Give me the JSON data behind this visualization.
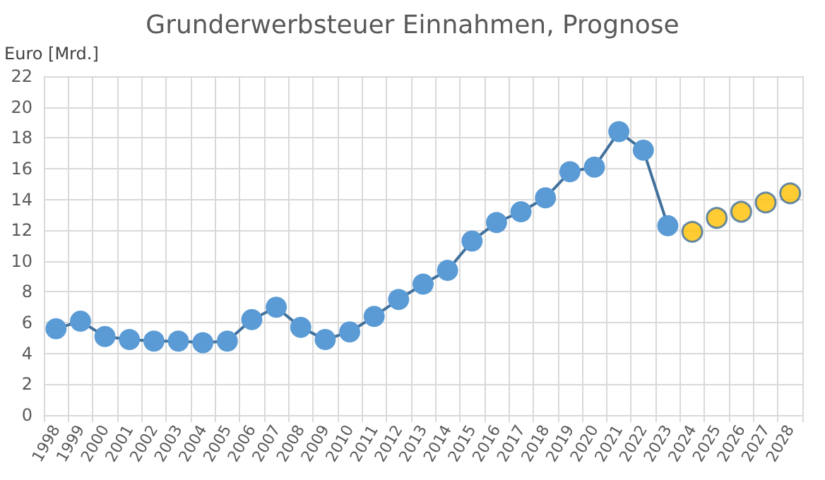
{
  "chart_data": {
    "type": "line",
    "title": "Grunderwerbsteuer Einnahmen, Prognose",
    "ylabel": "Euro [Mrd.]",
    "categories": [
      "1998",
      "1999",
      "2000",
      "2001",
      "2002",
      "2003",
      "2004",
      "2005",
      "2006",
      "2007",
      "2008",
      "2009",
      "2010",
      "2011",
      "2012",
      "2013",
      "2014",
      "2015",
      "2016",
      "2017",
      "2018",
      "2019",
      "2020",
      "2021",
      "2022",
      "2023",
      "2024",
      "2025",
      "2026",
      "2027",
      "2028"
    ],
    "series": [
      {
        "color": "#5b9bd5",
        "values": [
          5.6,
          6.1,
          5.1,
          4.9,
          4.8,
          4.8,
          4.7,
          4.8,
          6.2,
          7.0,
          5.7,
          4.9,
          5.4,
          6.4,
          7.5,
          8.5,
          9.4,
          11.3,
          12.5,
          13.2,
          14.1,
          15.8,
          16.1,
          18.4,
          17.2,
          12.3,
          null,
          null,
          null,
          null,
          null
        ]
      },
      {
        "type": "scatter",
        "color": "#ffc000",
        "values": [
          null,
          null,
          null,
          null,
          null,
          null,
          null,
          null,
          null,
          null,
          null,
          null,
          null,
          null,
          null,
          null,
          null,
          null,
          null,
          null,
          null,
          null,
          null,
          null,
          null,
          null,
          11.9,
          12.8,
          13.2,
          13.8,
          14.4
        ]
      }
    ],
    "ylim": [
      0,
      22
    ],
    "yticks": [
      0,
      2,
      4,
      6,
      8,
      10,
      12,
      14,
      16,
      18,
      20,
      22
    ],
    "grid": true,
    "marker": "circle"
  }
}
